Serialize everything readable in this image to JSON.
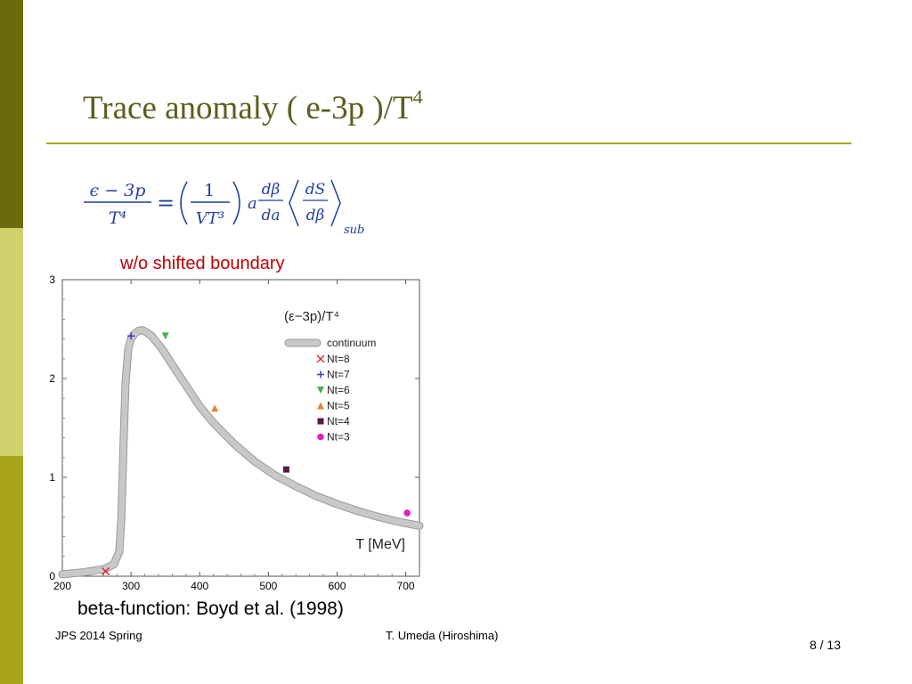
{
  "slide": {
    "title_main": "Trace anomaly  ( e-3p )/T",
    "title_sup": "4",
    "formula": {
      "lhs_num": "ϵ − 3p",
      "lhs_den": "T⁴",
      "equals": "=",
      "one": "1",
      "vt3": "VT³",
      "a": "a",
      "dbeta": "dβ",
      "da": "da",
      "ds": "dS",
      "dbeta2": "dβ",
      "sub": "sub"
    },
    "subtitle": "w/o shifted boundary",
    "caption": "beta-function: Boyd et al. (1998)",
    "footer_left": "JPS 2014 Spring",
    "footer_center": "T. Umeda (Hiroshima)",
    "page": "8 / 13"
  },
  "colors": {
    "sidebar_dark": "#6b6b0e",
    "sidebar_light": "#d0d16a",
    "sidebar_mid": "#a5a517",
    "title": "#5d5d1c",
    "rule": "#a7a71c",
    "subtitle": "#c00000",
    "formula": "#1f3fa3"
  },
  "chart_data": {
    "type": "line",
    "title": "(ε−3p)/T⁴",
    "xlabel": "T [MeV]",
    "ylabel": "",
    "xlim": [
      200,
      720
    ],
    "ylim": [
      0,
      3
    ],
    "x_ticks": [
      200,
      300,
      400,
      500,
      600,
      700
    ],
    "y_ticks": [
      0,
      1,
      2,
      3
    ],
    "grid": false,
    "legend_position": "top-right",
    "series": [
      {
        "name": "continuum",
        "style": "line",
        "color": "#c8c8c8",
        "x": [
          200,
          230,
          260,
          275,
          283,
          286,
          289,
          292,
          296,
          300,
          305,
          310,
          316,
          322,
          330,
          345,
          360,
          380,
          400,
          420,
          450,
          480,
          510,
          540,
          570,
          600,
          630,
          660,
          690,
          720
        ],
        "y": [
          0.02,
          0.04,
          0.07,
          0.12,
          0.25,
          0.6,
          1.3,
          1.95,
          2.3,
          2.4,
          2.45,
          2.48,
          2.49,
          2.47,
          2.43,
          2.3,
          2.14,
          1.93,
          1.72,
          1.55,
          1.34,
          1.16,
          1.02,
          0.91,
          0.81,
          0.73,
          0.66,
          0.6,
          0.55,
          0.51
        ]
      },
      {
        "name": "Nt=8",
        "style": "marker",
        "marker": "x",
        "color": "#e03030",
        "x": [
          263
        ],
        "y": [
          0.05
        ]
      },
      {
        "name": "Nt=7",
        "style": "marker",
        "marker": "plus",
        "color": "#3040b0",
        "x": [
          300
        ],
        "y": [
          2.43
        ]
      },
      {
        "name": "Nt=6",
        "style": "marker",
        "marker": "triangle-down",
        "color": "#4caf50",
        "x": [
          350
        ],
        "y": [
          2.43
        ]
      },
      {
        "name": "Nt=5",
        "style": "marker",
        "marker": "triangle-up",
        "color": "#e08a30",
        "x": [
          422
        ],
        "y": [
          1.7
        ]
      },
      {
        "name": "Nt=4",
        "style": "marker",
        "marker": "square",
        "color": "#5a1a4a",
        "x": [
          526
        ],
        "y": [
          1.08
        ]
      },
      {
        "name": "Nt=3",
        "style": "marker",
        "marker": "circle",
        "color": "#e020c0",
        "x": [
          702
        ],
        "y": [
          0.64
        ]
      }
    ]
  }
}
